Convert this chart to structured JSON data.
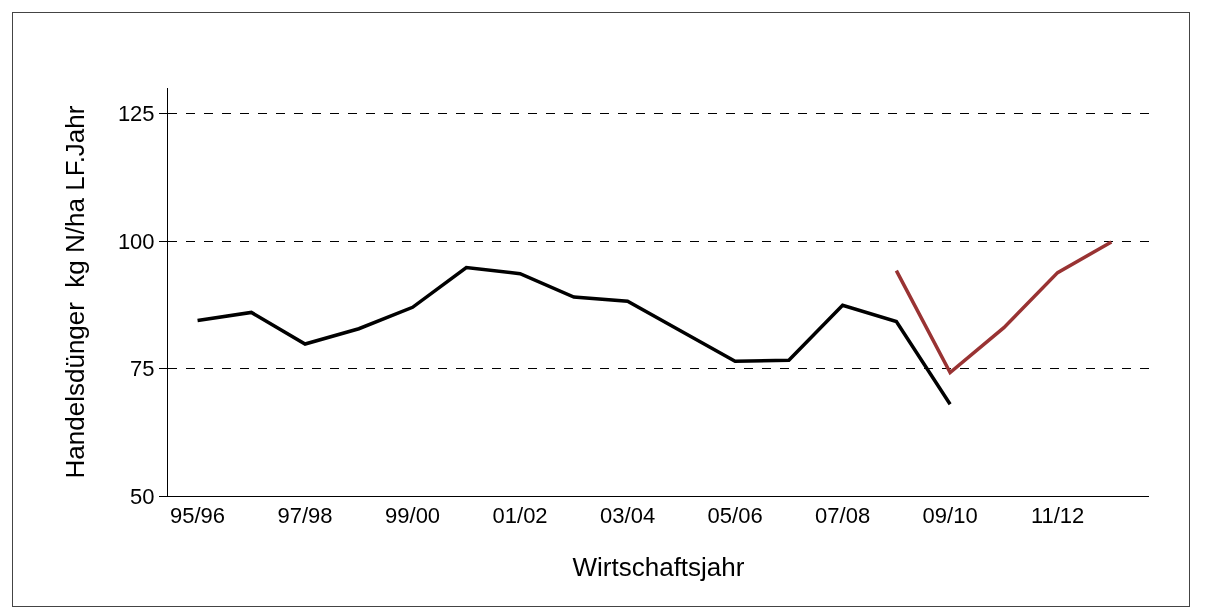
{
  "chart_data": {
    "type": "line",
    "xlabel": "Wirtschaftsjahr",
    "ylabel": "Handelsdünger  kg N/ha LF.Jahr",
    "categories": [
      "95/96",
      null,
      "97/98",
      null,
      "99/00",
      null,
      "01/02",
      null,
      "03/04",
      null,
      "05/06",
      null,
      "07/08",
      null,
      "09/10",
      null,
      "11/12",
      null
    ],
    "series": [
      {
        "color": "#000000",
        "values": [
          84.4,
          86,
          79.8,
          82.8,
          87,
          94.8,
          93.6,
          89,
          88.2,
          82.3,
          76.4,
          76.6,
          87.4,
          84.2,
          68,
          null,
          null,
          null
        ]
      },
      {
        "color": "#993333",
        "values": [
          null,
          null,
          null,
          null,
          null,
          null,
          null,
          null,
          null,
          null,
          null,
          null,
          null,
          94.2,
          74.2,
          83,
          93.8,
          99.8
        ]
      }
    ],
    "ylim": [
      50,
      130
    ],
    "yticks": [
      50,
      75,
      100,
      125
    ],
    "grid": "y",
    "legend": false,
    "marker": "none",
    "line_style": "solid"
  }
}
